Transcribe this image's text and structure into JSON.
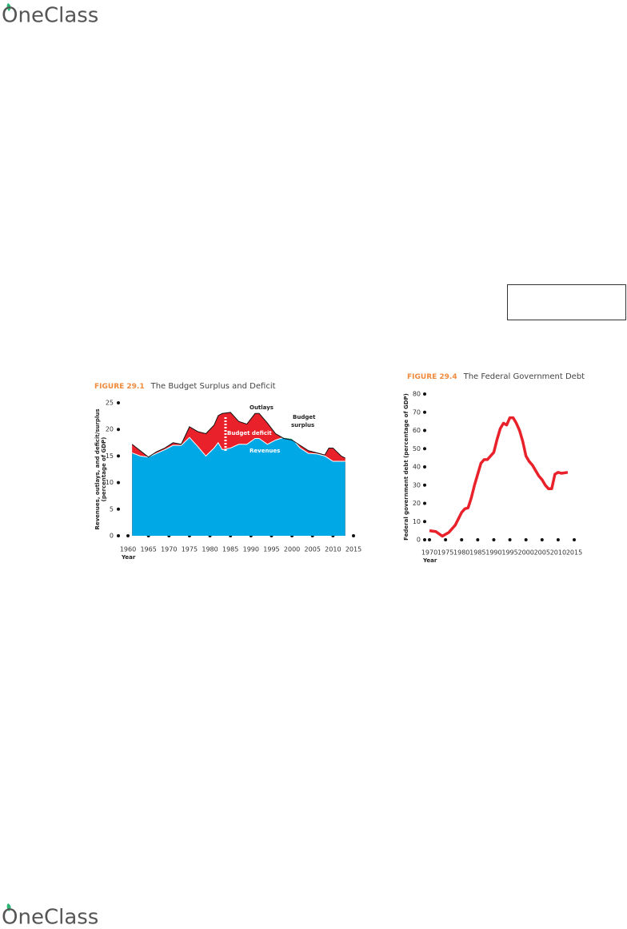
{
  "logo": "OneClass",
  "footer_logo": "OneClass",
  "chart_data": [
    {
      "type": "area",
      "figure_label": "FIGURE 29.1",
      "title": "The Budget Surplus and Deficit",
      "x_label": "Year",
      "y_label": [
        "Revenues, outlays, and deficit/surplus",
        "(percentage of GDP)"
      ],
      "annotations": {
        "outlays": "Outlays",
        "deficit": "Budget deficit",
        "revenues": "Revenues",
        "surplus": [
          "Budget",
          "surplus"
        ]
      },
      "x": [
        1961,
        1963,
        1965,
        1967,
        1969,
        1971,
        1973,
        1975,
        1977,
        1979,
        1981,
        1982,
        1983,
        1985,
        1987,
        1989,
        1991,
        1992,
        1994,
        1996,
        1998,
        2000,
        2002,
        2004,
        2006,
        2008,
        2009,
        2010,
        2012,
        2013
      ],
      "series": [
        {
          "name": "Outlays",
          "color": "#e8212a",
          "values": [
            17.2,
            16.0,
            14.8,
            15.8,
            16.5,
            17.5,
            17.2,
            20.5,
            19.6,
            19.2,
            20.8,
            22.6,
            23.0,
            23.2,
            21.5,
            21.0,
            23.0,
            23.0,
            21.2,
            19.2,
            18.3,
            18.0,
            17.0,
            16.0,
            15.6,
            15.2,
            16.5,
            16.5,
            15.0,
            14.6
          ]
        },
        {
          "name": "Revenues",
          "color": "#00a9e6",
          "values": [
            15.6,
            15.0,
            14.8,
            15.5,
            16.2,
            17.0,
            17.0,
            18.5,
            16.8,
            15.0,
            16.5,
            17.5,
            16.2,
            16.5,
            17.2,
            17.2,
            18.3,
            18.3,
            17.2,
            18.0,
            18.5,
            18.3,
            16.5,
            15.5,
            15.4,
            15.0,
            14.5,
            14.0,
            14.0,
            14.0
          ]
        }
      ],
      "surplus_color": "#2fb08a",
      "xlim": [
        1960,
        2015
      ],
      "xticks": [
        1960,
        1965,
        1970,
        1975,
        1980,
        1985,
        1990,
        1995,
        2000,
        2005,
        2010,
        2015
      ],
      "ylim": [
        0,
        25
      ],
      "yticks": [
        0,
        5,
        10,
        15,
        20,
        25
      ]
    },
    {
      "type": "line",
      "figure_label": "FIGURE 29.4",
      "title": "The Federal Government Debt",
      "x_label": "Year",
      "y_label": [
        "Federal government debt (percentage of GDP)"
      ],
      "x": [
        1970,
        1972,
        1974,
        1976,
        1978,
        1980,
        1981,
        1982,
        1983,
        1984,
        1985,
        1986,
        1987,
        1988,
        1989,
        1990,
        1991,
        1992,
        1993,
        1994,
        1995,
        1996,
        1997,
        1998,
        1999,
        2000,
        2001,
        2002,
        2003,
        2004,
        2005,
        2006,
        2007,
        2008,
        2009,
        2010,
        2011,
        2013
      ],
      "series": [
        {
          "name": "Debt",
          "color": "#e8212a",
          "values": [
            5,
            4.5,
            2,
            4,
            8,
            15,
            17,
            17.5,
            23,
            30,
            36,
            42,
            44,
            44,
            46,
            48,
            55,
            61,
            64,
            63,
            67,
            67,
            64,
            60,
            54,
            46,
            43,
            41,
            38,
            35,
            33,
            30,
            28,
            28,
            36,
            37,
            36.5,
            37
          ]
        }
      ],
      "xlim": [
        1970,
        2015
      ],
      "xticks": [
        1970,
        1975,
        1980,
        1985,
        1990,
        1995,
        2000,
        2005,
        2010,
        2015
      ],
      "ylim": [
        0,
        80
      ],
      "yticks": [
        0,
        10,
        20,
        30,
        40,
        50,
        60,
        70,
        80
      ]
    }
  ]
}
